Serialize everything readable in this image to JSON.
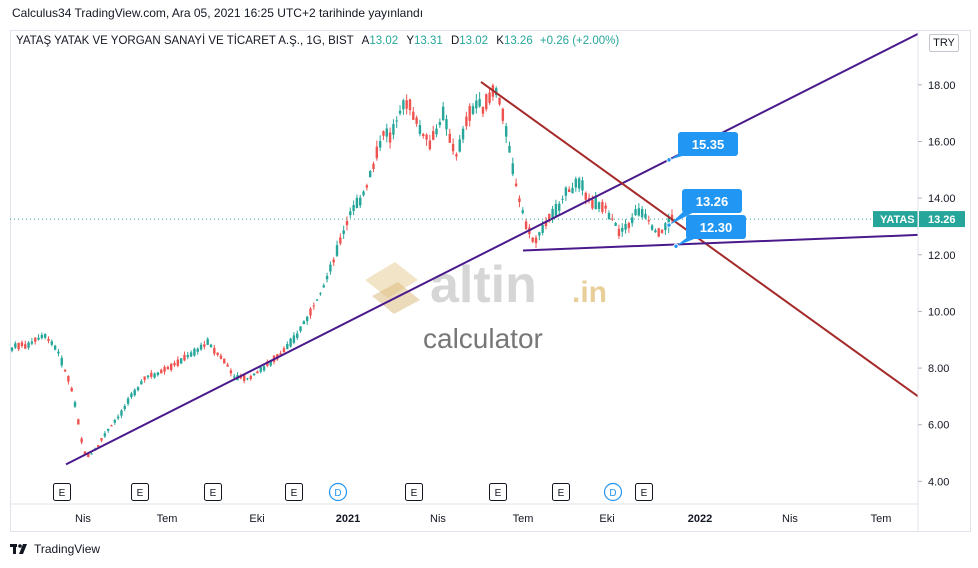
{
  "header": {
    "published_text": "Calculus34 TradingView.com, Ara 05, 2021 16:25 UTC+2 tarihinde yayınlandı"
  },
  "symbol_info": {
    "name": "YATAŞ YATAK VE YORGAN SANAYİ VE TİCARET A.Ş., 1G, BIST",
    "open_label": "A",
    "open": "13.02",
    "high_label": "Y",
    "high": "13.31",
    "low_label": "D",
    "low": "13.02",
    "close_label": "K",
    "close": "13.26",
    "change": "+0.26 (+2.00%)"
  },
  "currency": "TRY",
  "watermark": {
    "brand": "altin",
    "domain": ".in",
    "sub": "calculator"
  },
  "footer": {
    "logo_text": "TradingView"
  },
  "colors": {
    "up": "#26a69a",
    "down": "#ef5350",
    "support": "#4a1a8c",
    "resistance": "#a52a2a",
    "callout": "#2196f3"
  },
  "chart_data": {
    "type": "candlestick",
    "ylim": [
      3.2,
      19.9
    ],
    "y_ticks": [
      "4.00",
      "6.00",
      "8.00",
      "10.00",
      "12.00",
      "14.00",
      "16.00",
      "18.00"
    ],
    "x_ticks": [
      "Nis",
      "Tem",
      "Eki",
      "2021",
      "Nis",
      "Tem",
      "Eki",
      "2022",
      "Nis",
      "Tem"
    ],
    "last_price_label": "YATAS",
    "last_price": "13.26",
    "series_path": [
      [
        0,
        8.7
      ],
      [
        3,
        8.9
      ],
      [
        5,
        9.2
      ],
      [
        7,
        8.6
      ],
      [
        8,
        8.0
      ],
      [
        9,
        7.4
      ],
      [
        10,
        6.3
      ],
      [
        11,
        5.0
      ],
      [
        12,
        4.9
      ],
      [
        13,
        5.2
      ],
      [
        14,
        5.6
      ],
      [
        15,
        5.9
      ],
      [
        16,
        6.2
      ],
      [
        17,
        6.5
      ],
      [
        18,
        6.9
      ],
      [
        19,
        7.2
      ],
      [
        20,
        7.6
      ],
      [
        22,
        7.8
      ],
      [
        24,
        8.0
      ],
      [
        26,
        8.3
      ],
      [
        28,
        8.6
      ],
      [
        30,
        8.9
      ],
      [
        32,
        8.4
      ],
      [
        34,
        7.7
      ],
      [
        36,
        7.6
      ],
      [
        38,
        7.9
      ],
      [
        40,
        8.3
      ],
      [
        42,
        8.7
      ],
      [
        44,
        9.3
      ],
      [
        46,
        10.1
      ],
      [
        48,
        11.0
      ],
      [
        50,
        12.3
      ],
      [
        52,
        13.6
      ],
      [
        54,
        14.2
      ],
      [
        55,
        14.9
      ],
      [
        56,
        15.8
      ],
      [
        57,
        16.3
      ],
      [
        58,
        16.1
      ],
      [
        59,
        16.8
      ],
      [
        60,
        17.5
      ],
      [
        61,
        17.3
      ],
      [
        62,
        16.6
      ],
      [
        63,
        16.2
      ],
      [
        64,
        15.9
      ],
      [
        65,
        16.3
      ],
      [
        66,
        17.0
      ],
      [
        67,
        16.0
      ],
      [
        68,
        15.5
      ],
      [
        69,
        16.2
      ],
      [
        70,
        17.0
      ],
      [
        71,
        17.3
      ],
      [
        72,
        17.2
      ],
      [
        73,
        17.5
      ],
      [
        74,
        17.9
      ],
      [
        75,
        17.0
      ],
      [
        76,
        15.8
      ],
      [
        77,
        14.6
      ],
      [
        78,
        13.6
      ],
      [
        79,
        12.8
      ],
      [
        80,
        12.5
      ],
      [
        81,
        12.9
      ],
      [
        82,
        13.2
      ],
      [
        83,
        13.5
      ],
      [
        84,
        13.9
      ],
      [
        85,
        14.2
      ],
      [
        86,
        14.4
      ],
      [
        87,
        14.5
      ],
      [
        88,
        14.1
      ],
      [
        89,
        13.8
      ],
      [
        90,
        13.8
      ],
      [
        91,
        13.6
      ],
      [
        92,
        13.2
      ],
      [
        93,
        12.8
      ],
      [
        94,
        12.9
      ],
      [
        95,
        13.3
      ],
      [
        96,
        13.6
      ],
      [
        97,
        13.4
      ],
      [
        98,
        13.0
      ],
      [
        99,
        12.7
      ],
      [
        100,
        13.0
      ],
      [
        101,
        13.26
      ]
    ],
    "trendlines": [
      {
        "name": "lower-rising-support",
        "from": [
          66,
          4.6
        ],
        "to": [
          918,
          19.8
        ]
      },
      {
        "name": "falling-resistance",
        "from": [
          481,
          18.1
        ],
        "to": [
          918,
          7.0
        ]
      },
      {
        "name": "flat-support",
        "from": [
          523,
          12.15
        ],
        "to": [
          918,
          12.7
        ]
      }
    ],
    "callouts": [
      {
        "text": "15.35",
        "price": 15.35
      },
      {
        "text": "13.26",
        "price": 13.26
      },
      {
        "text": "12.30",
        "price": 12.3
      }
    ],
    "event_markers": [
      "E",
      "E",
      "E",
      "E",
      "D",
      "E",
      "E",
      "E",
      "D",
      "E"
    ]
  }
}
